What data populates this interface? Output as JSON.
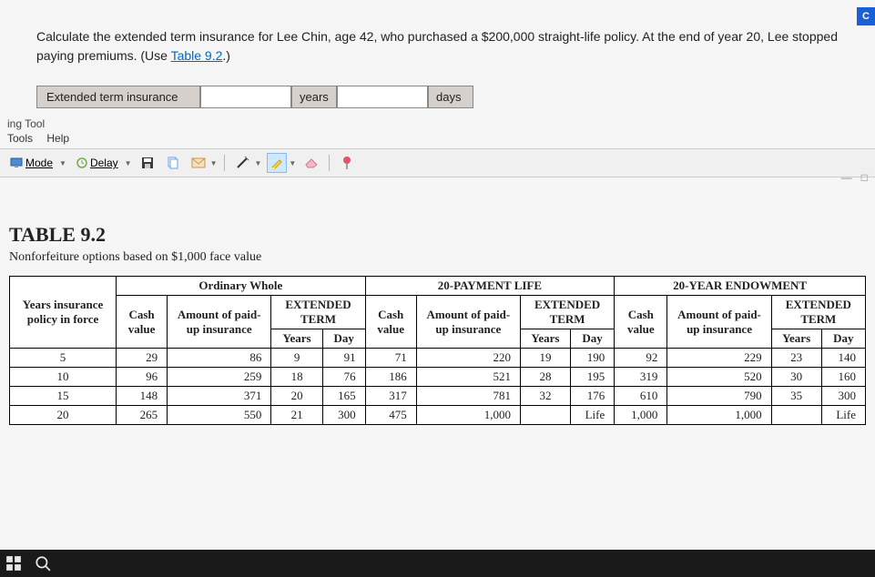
{
  "badge": "C",
  "question_prefix": "Calculate the extended term insurance for Lee Chin, age 42, who purchased a $200,000 straight-life policy. At the end of year 20, Lee stopped paying premiums. (Use ",
  "question_link": "Table 9.2",
  "question_suffix": ".)",
  "answer_label": "Extended term insurance",
  "unit_years": "years",
  "unit_days": "days",
  "tool_label": "ing Tool",
  "menu_tools": "Tools",
  "menu_help": "Help",
  "mode_label": "Mode",
  "delay_label": "Delay",
  "table_title": "TABLE 9.2",
  "table_subtitle": "Nonforfeiture options based on $1,000 face value",
  "grp_ordinary": "Ordinary Whole",
  "grp_20pay": "20-PAYMENT LIFE",
  "grp_20endow": "20-YEAR ENDOWMENT",
  "hdr_years_policy": "Years insurance policy in force",
  "hdr_cash": "Cash value",
  "hdr_paidup": "Amount of paid-up insurance",
  "hdr_ext": "EXTENDED TERM",
  "hdr_ext_years": "Years",
  "hdr_ext_day": "Day",
  "rows": [
    {
      "y": "5",
      "a_cash": "29",
      "a_pu": "86",
      "a_ey": "9",
      "a_ed": "91",
      "b_cash": "71",
      "b_pu": "220",
      "b_ey": "19",
      "b_ed": "190",
      "c_cash": "92",
      "c_pu": "229",
      "c_ey": "23",
      "c_ed": "140"
    },
    {
      "y": "10",
      "a_cash": "96",
      "a_pu": "259",
      "a_ey": "18",
      "a_ed": "76",
      "b_cash": "186",
      "b_pu": "521",
      "b_ey": "28",
      "b_ed": "195",
      "c_cash": "319",
      "c_pu": "520",
      "c_ey": "30",
      "c_ed": "160"
    },
    {
      "y": "15",
      "a_cash": "148",
      "a_pu": "371",
      "a_ey": "20",
      "a_ed": "165",
      "b_cash": "317",
      "b_pu": "781",
      "b_ey": "32",
      "b_ed": "176",
      "c_cash": "610",
      "c_pu": "790",
      "c_ey": "35",
      "c_ed": "300"
    },
    {
      "y": "20",
      "a_cash": "265",
      "a_pu": "550",
      "a_ey": "21",
      "a_ed": "300",
      "b_cash": "475",
      "b_pu": "1,000",
      "b_ey": "",
      "b_ed": "Life",
      "c_cash": "1,000",
      "c_pu": "1,000",
      "c_ey": "",
      "c_ed": "Life"
    }
  ]
}
